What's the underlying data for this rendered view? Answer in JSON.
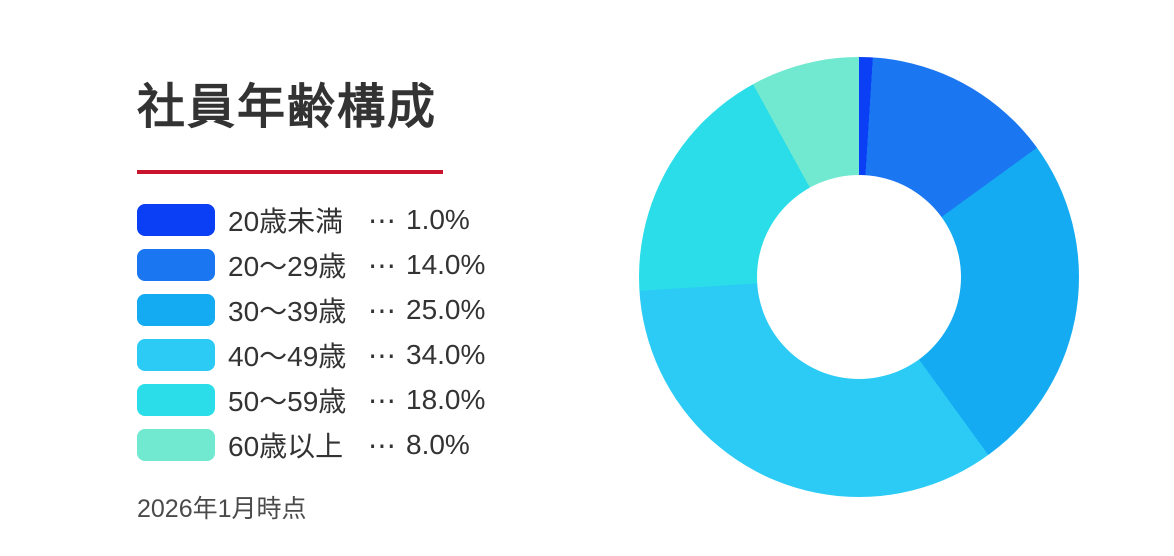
{
  "title": "社員年齢構成",
  "footnote": "2026年1月時点",
  "accent_color": "#C9142E",
  "text_color": "#333333",
  "background_color": "#FFFFFF",
  "chart_data": {
    "type": "pie",
    "subtype": "donut",
    "title": "社員年齢構成",
    "start_angle_deg": 0,
    "direction": "clockwise",
    "inner_radius_ratio": 0.46,
    "legend_position": "left",
    "separator": "⋯",
    "categories": [
      "20歳未満",
      "20〜29歳",
      "30〜39歳",
      "40〜49歳",
      "50〜59歳",
      "60歳以上"
    ],
    "values": [
      1.0,
      14.0,
      25.0,
      34.0,
      18.0,
      8.0
    ],
    "value_labels": [
      "1.0%",
      "14.0%",
      "25.0%",
      "34.0%",
      "18.0%",
      "8.0%"
    ],
    "colors": [
      "#0A3FF5",
      "#1B76F2",
      "#14ABF2",
      "#2BCBF5",
      "#2BDDE8",
      "#70E9D0"
    ]
  }
}
